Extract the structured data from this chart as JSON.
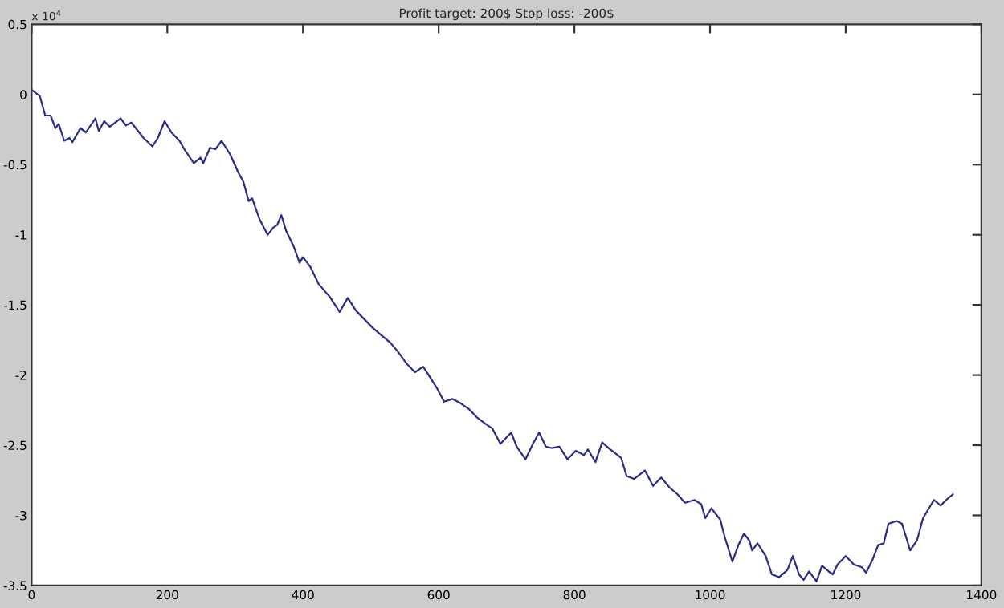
{
  "chart_data": {
    "type": "line",
    "title": "Profit target: 200$ Stop loss: -200$",
    "annotations": [
      "x 10$^{4}$"
    ],
    "xlim": [
      0,
      1400
    ],
    "xticks": [
      0,
      200,
      400,
      600,
      800,
      1000,
      1200,
      1400
    ],
    "ylim": [
      -3.5,
      0.5
    ],
    "yticks": [
      -3.5,
      -3,
      -2.5,
      -2,
      -1.5,
      -1,
      -0.5,
      0,
      0.5
    ],
    "grid": false,
    "series": [
      {
        "color": "#2b2b8a",
        "x": [
          1,
          12,
          20,
          28,
          35,
          40,
          48,
          56,
          60,
          72,
          80,
          94,
          99,
          107,
          115,
          131,
          139,
          147,
          165,
          178,
          186,
          196,
          206,
          218,
          225,
          239,
          249,
          253,
          263,
          271,
          280,
          293,
          304,
          312,
          320,
          325,
          336,
          348,
          356,
          362,
          368,
          375,
          386,
          395,
          400,
          411,
          423,
          430,
          439,
          454,
          466,
          478,
          490,
          502,
          514,
          529,
          541,
          553,
          565,
          577,
          584,
          597,
          608,
          620,
          632,
          644,
          656,
          667,
          679,
          691,
          699,
          707,
          715,
          728,
          739,
          748,
          758,
          766,
          778,
          790,
          802,
          814,
          820,
          831,
          841,
          853,
          869,
          877,
          888,
          904,
          916,
          928,
          940,
          952,
          963,
          977,
          987,
          993,
          1002,
          1015,
          1022,
          1033,
          1042,
          1050,
          1058,
          1062,
          1070,
          1082,
          1091,
          1102,
          1114,
          1122,
          1131,
          1138,
          1146,
          1157,
          1165,
          1175,
          1181,
          1188,
          1200,
          1212,
          1224,
          1230,
          1240,
          1248,
          1256,
          1263,
          1275,
          1283,
          1295,
          1305,
          1314,
          1330,
          1340,
          1348,
          1358
        ],
        "values": [
          0.03,
          -0.01,
          -0.15,
          -0.15,
          -0.24,
          -0.21,
          -0.33,
          -0.31,
          -0.34,
          -0.24,
          -0.27,
          -0.17,
          -0.26,
          -0.19,
          -0.23,
          -0.17,
          -0.22,
          -0.2,
          -0.31,
          -0.37,
          -0.31,
          -0.19,
          -0.27,
          -0.33,
          -0.39,
          -0.49,
          -0.45,
          -0.49,
          -0.38,
          -0.39,
          -0.33,
          -0.43,
          -0.55,
          -0.62,
          -0.76,
          -0.74,
          -0.89,
          -1.0,
          -0.95,
          -0.93,
          -0.86,
          -0.97,
          -1.08,
          -1.2,
          -1.16,
          -1.23,
          -1.35,
          -1.39,
          -1.44,
          -1.55,
          -1.45,
          -1.54,
          -1.6,
          -1.66,
          -1.71,
          -1.77,
          -1.84,
          -1.92,
          -1.98,
          -1.94,
          -1.99,
          -2.09,
          -2.19,
          -2.17,
          -2.2,
          -2.24,
          -2.3,
          -2.34,
          -2.38,
          -2.49,
          -2.45,
          -2.41,
          -2.51,
          -2.6,
          -2.49,
          -2.41,
          -2.51,
          -2.52,
          -2.51,
          -2.6,
          -2.54,
          -2.57,
          -2.53,
          -2.62,
          -2.48,
          -2.53,
          -2.59,
          -2.72,
          -2.74,
          -2.68,
          -2.79,
          -2.73,
          -2.8,
          -2.85,
          -2.91,
          -2.89,
          -2.92,
          -3.02,
          -2.95,
          -3.03,
          -3.16,
          -3.33,
          -3.21,
          -3.13,
          -3.18,
          -3.25,
          -3.2,
          -3.29,
          -3.42,
          -3.44,
          -3.39,
          -3.29,
          -3.42,
          -3.46,
          -3.4,
          -3.47,
          -3.36,
          -3.4,
          -3.42,
          -3.35,
          -3.29,
          -3.35,
          -3.37,
          -3.41,
          -3.31,
          -3.21,
          -3.2,
          -3.06,
          -3.04,
          -3.06,
          -3.25,
          -3.18,
          -3.02,
          -2.89,
          -2.93,
          -2.89,
          -2.85
        ]
      }
    ]
  }
}
